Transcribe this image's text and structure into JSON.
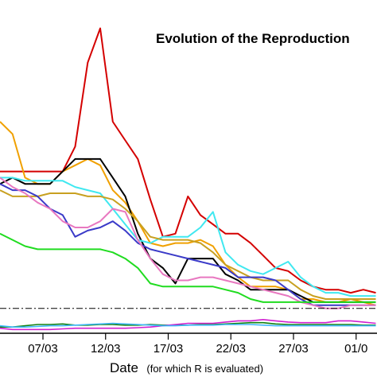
{
  "chart_data": {
    "type": "line",
    "title": "Evolution of the Reproduction",
    "xlabel": "Date",
    "xlabel_note": "(for which R is evaluated)",
    "ylabel": "",
    "x_ticks": [
      "07/03",
      "12/03",
      "17/03",
      "22/03",
      "27/03",
      "01/0"
    ],
    "grid": false,
    "x": [
      "03/03",
      "04/03",
      "05/03",
      "06/03",
      "07/03",
      "08/03",
      "09/03",
      "10/03",
      "11/03",
      "12/03",
      "13/03",
      "14/03",
      "15/03",
      "16/03",
      "17/03",
      "18/03",
      "19/03",
      "20/03",
      "21/03",
      "22/03",
      "23/03",
      "24/03",
      "25/03",
      "26/03",
      "27/03",
      "28/03",
      "29/03",
      "30/03",
      "31/03",
      "01/04",
      "02/04"
    ],
    "series": [
      {
        "color": "#d40000",
        "values": [
          3.1,
          3.1,
          3.1,
          3.1,
          3.1,
          3.1,
          3.5,
          4.85,
          5.4,
          3.9,
          3.6,
          3.3,
          2.65,
          2.05,
          2.1,
          2.7,
          2.4,
          2.25,
          2.1,
          2.1,
          1.95,
          1.75,
          1.55,
          1.5,
          1.35,
          1.25,
          1.2,
          1.2,
          1.15,
          1.2,
          1.15
        ]
      },
      {
        "color": "#f0a000",
        "values": [
          3.9,
          3.7,
          3.0,
          2.9,
          2.9,
          3.1,
          3.2,
          3.3,
          3.2,
          2.8,
          2.6,
          2.3,
          1.95,
          1.9,
          1.95,
          1.95,
          2.0,
          1.9,
          1.6,
          1.4,
          1.25,
          1.25,
          1.25,
          1.2,
          1.05,
          1.05,
          1.0,
          1.0,
          1.05,
          1.0,
          0.95
        ]
      },
      {
        "color": "#000000",
        "values": [
          2.9,
          3.0,
          2.9,
          2.9,
          2.9,
          3.1,
          3.3,
          3.3,
          3.3,
          3.0,
          2.7,
          2.1,
          1.7,
          1.55,
          1.3,
          1.7,
          1.7,
          1.7,
          1.45,
          1.35,
          1.2,
          1.2,
          1.2,
          1.2,
          1.1,
          1.0,
          1.0,
          1.0,
          1.0,
          1.0,
          1.0
        ]
      },
      {
        "color": "#40e8f0",
        "values": [
          3.0,
          3.0,
          2.95,
          2.95,
          2.95,
          2.95,
          2.85,
          2.8,
          2.75,
          2.5,
          2.25,
          2.0,
          1.95,
          2.05,
          2.05,
          2.05,
          2.2,
          2.45,
          1.8,
          1.6,
          1.5,
          1.45,
          1.55,
          1.65,
          1.4,
          1.25,
          1.15,
          1.15,
          1.1,
          1.1,
          1.1
        ]
      },
      {
        "color": "#c8a020",
        "values": [
          2.8,
          2.7,
          2.7,
          2.7,
          2.75,
          2.75,
          2.75,
          2.7,
          2.7,
          2.65,
          2.5,
          2.3,
          2.05,
          2.0,
          2.0,
          2.0,
          1.95,
          1.8,
          1.6,
          1.5,
          1.4,
          1.35,
          1.35,
          1.35,
          1.2,
          1.1,
          1.05,
          1.05,
          1.05,
          1.05,
          1.05
        ]
      },
      {
        "color": "#3a3ac8",
        "values": [
          2.9,
          2.8,
          2.8,
          2.7,
          2.5,
          2.4,
          2.05,
          2.15,
          2.2,
          2.3,
          2.15,
          1.95,
          1.85,
          1.8,
          1.75,
          1.7,
          1.65,
          1.6,
          1.55,
          1.4,
          1.4,
          1.4,
          1.35,
          1.2,
          1.05,
          0.95,
          0.95,
          0.95,
          0.95,
          0.95,
          0.95
        ]
      },
      {
        "color": "#e878c0",
        "values": [
          3.0,
          2.85,
          2.75,
          2.6,
          2.5,
          2.3,
          2.2,
          2.2,
          2.3,
          2.5,
          2.45,
          2.0,
          1.7,
          1.45,
          1.35,
          1.35,
          1.4,
          1.4,
          1.35,
          1.3,
          1.25,
          1.2,
          1.15,
          1.1,
          1.0,
          0.95,
          0.9,
          0.9,
          0.95,
          0.95,
          0.95
        ]
      },
      {
        "color": "#20dc20",
        "values": [
          2.1,
          2.0,
          1.9,
          1.85,
          1.85,
          1.85,
          1.85,
          1.85,
          1.85,
          1.8,
          1.7,
          1.55,
          1.3,
          1.25,
          1.25,
          1.25,
          1.25,
          1.25,
          1.2,
          1.15,
          1.05,
          1.0,
          1.0,
          1.0,
          1.0,
          1.0,
          1.0,
          1.0,
          1.0,
          1.0,
          1.0
        ]
      },
      {
        "color": "#108010",
        "values": [
          0.6,
          0.6,
          0.62,
          0.64,
          0.64,
          0.65,
          0.63,
          0.63,
          0.64,
          0.64,
          0.63,
          0.63,
          0.64,
          0.63,
          0.63,
          0.63,
          0.64,
          0.64,
          0.65,
          0.66,
          0.67,
          0.67,
          0.65,
          0.64,
          0.64,
          0.64,
          0.64,
          0.64,
          0.64,
          0.63,
          0.63
        ]
      },
      {
        "color": "#d020d0",
        "values": [
          0.58,
          0.56,
          0.56,
          0.56,
          0.56,
          0.57,
          0.58,
          0.58,
          0.58,
          0.58,
          0.58,
          0.59,
          0.6,
          0.62,
          0.64,
          0.66,
          0.66,
          0.66,
          0.68,
          0.7,
          0.7,
          0.72,
          0.7,
          0.68,
          0.67,
          0.67,
          0.67,
          0.7,
          0.7,
          0.68,
          0.66
        ]
      },
      {
        "color": "#40b8ff",
        "values": [
          0.62,
          0.6,
          0.6,
          0.61,
          0.62,
          0.62,
          0.63,
          0.64,
          0.65,
          0.66,
          0.65,
          0.64,
          0.63,
          0.62,
          0.62,
          0.63,
          0.63,
          0.63,
          0.64,
          0.64,
          0.64,
          0.63,
          0.62,
          0.62,
          0.62,
          0.62,
          0.62,
          0.62,
          0.62,
          0.62,
          0.62
        ]
      }
    ],
    "reference_line": {
      "y": 0.9,
      "style": "dash-dot",
      "color": "#000000"
    },
    "ylim": [
      0.5,
      5.6
    ]
  }
}
